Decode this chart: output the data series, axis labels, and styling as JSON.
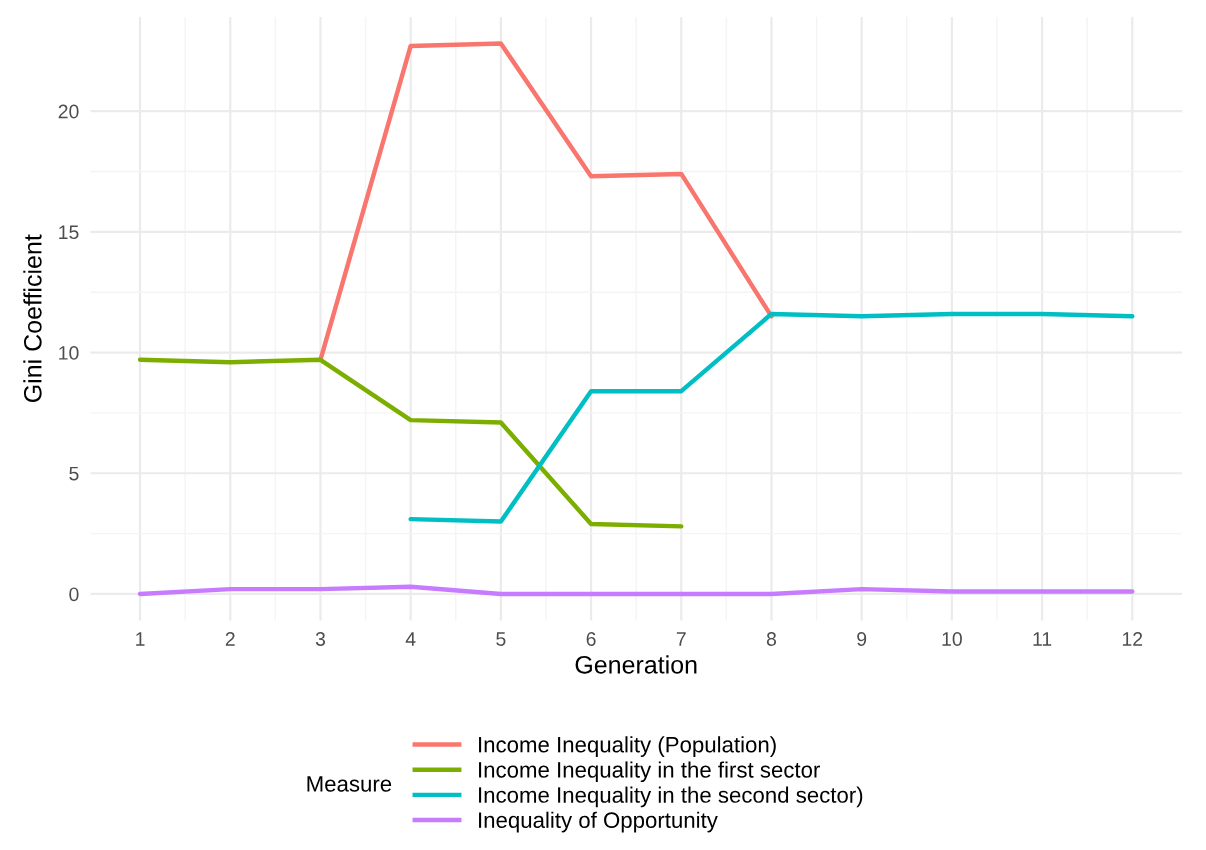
{
  "chart_data": {
    "type": "line",
    "xlabel": "Generation",
    "ylabel": "Gini Coefficient",
    "legend_title": "Measure",
    "x": [
      1,
      2,
      3,
      4,
      5,
      6,
      7,
      8,
      9,
      10,
      11,
      12
    ],
    "series": [
      {
        "name": "Income Inequality (Population)",
        "color": "#f8766d",
        "values": [
          null,
          null,
          9.7,
          22.7,
          22.8,
          17.3,
          17.4,
          11.5,
          null,
          null,
          null,
          null
        ]
      },
      {
        "name": "Income Inequality in the first sector",
        "color": "#7cae00",
        "values": [
          9.7,
          9.6,
          9.7,
          7.2,
          7.1,
          2.9,
          2.8,
          null,
          null,
          null,
          null,
          null
        ]
      },
      {
        "name": "Income Inequality in the second sector)",
        "color": "#00bfc4",
        "values": [
          null,
          null,
          null,
          3.1,
          3.0,
          8.4,
          8.4,
          11.6,
          11.5,
          11.6,
          11.6,
          11.5
        ]
      },
      {
        "name": "Inequality of Opportunity",
        "color": "#c77cff",
        "values": [
          0.0,
          0.2,
          0.2,
          0.3,
          0.0,
          0.0,
          0.0,
          0.0,
          0.2,
          0.1,
          0.1,
          0.1
        ]
      }
    ],
    "xlim": [
      0.45,
      12.55
    ],
    "xticks": [
      1,
      2,
      3,
      4,
      5,
      6,
      7,
      8,
      9,
      10,
      11,
      12
    ],
    "ylim": [
      -1.1,
      23.9
    ],
    "yticks": [
      0,
      5,
      10,
      15,
      20
    ],
    "grid": true,
    "legend": "bottom",
    "marker": "none",
    "line_style": "solid"
  }
}
